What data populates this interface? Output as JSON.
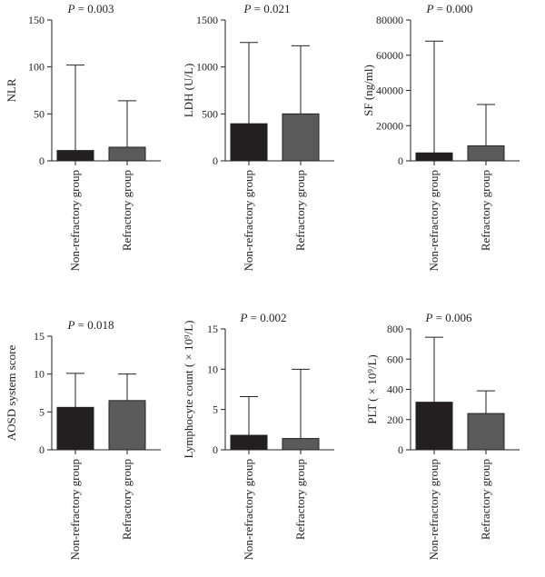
{
  "chart_data": [
    {
      "type": "bar",
      "title": "= 0.003",
      "title_prefix": "P",
      "ylabel": "NLR",
      "ylim": [
        0,
        150
      ],
      "yticks": [
        "0",
        "50",
        "100",
        "150"
      ],
      "categories": [
        "Non-refractory group",
        "Refractory group"
      ],
      "values": [
        11,
        14.5
      ],
      "error_upper": [
        102,
        64
      ],
      "colors": [
        "#231f20",
        "#5a5a5a"
      ]
    },
    {
      "type": "bar",
      "title": "= 0.021",
      "title_prefix": "P",
      "ylabel": "LDH (U/L)",
      "ylim": [
        0,
        1500
      ],
      "yticks": [
        "0",
        "500",
        "1000",
        "1500"
      ],
      "categories": [
        "Non-refractory group",
        "Refractory group"
      ],
      "values": [
        395,
        500
      ],
      "error_upper": [
        1260,
        1225
      ],
      "colors": [
        "#231f20",
        "#5a5a5a"
      ]
    },
    {
      "type": "bar",
      "title": "= 0.000",
      "title_prefix": "P",
      "ylabel": "SF (ng/ml)",
      "ylim": [
        0,
        80000
      ],
      "yticks": [
        "0",
        "20000",
        "40000",
        "60000",
        "80000"
      ],
      "categories": [
        "Non-refractory group",
        "Refractory group"
      ],
      "values": [
        4500,
        8500
      ],
      "error_upper": [
        68000,
        32000
      ],
      "colors": [
        "#231f20",
        "#5a5a5a"
      ]
    },
    {
      "type": "bar",
      "title": "= 0.018",
      "title_prefix": "P",
      "ylabel": "AOSD system score",
      "ylim": [
        0,
        15
      ],
      "yticks": [
        "0",
        "5",
        "10",
        "15"
      ],
      "categories": [
        "Non-refractory group",
        "Refractory group"
      ],
      "values": [
        5.6,
        6.5
      ],
      "error_upper": [
        10.1,
        10.0
      ],
      "colors": [
        "#231f20",
        "#5a5a5a"
      ]
    },
    {
      "type": "bar",
      "title": "= 0.002",
      "title_prefix": "P",
      "ylabel": "Lymphocyte count ( × 10⁹/L)",
      "ylim": [
        0,
        15
      ],
      "yticks": [
        "0",
        "5",
        "10",
        "15"
      ],
      "categories": [
        "Non-refractory group",
        "Refractory group"
      ],
      "values": [
        1.8,
        1.4
      ],
      "error_upper": [
        6.6,
        10.0
      ],
      "colors": [
        "#231f20",
        "#5a5a5a"
      ]
    },
    {
      "type": "bar",
      "title": "= 0.006",
      "title_prefix": "P",
      "ylabel": "PLT ( × 10⁹/L)",
      "ylim": [
        0,
        800
      ],
      "yticks": [
        "0",
        "200",
        "400",
        "600",
        "800"
      ],
      "categories": [
        "Non-refractory group",
        "Refractory group"
      ],
      "values": [
        315,
        240
      ],
      "error_upper": [
        745,
        390
      ],
      "colors": [
        "#231f20",
        "#5a5a5a"
      ]
    }
  ]
}
